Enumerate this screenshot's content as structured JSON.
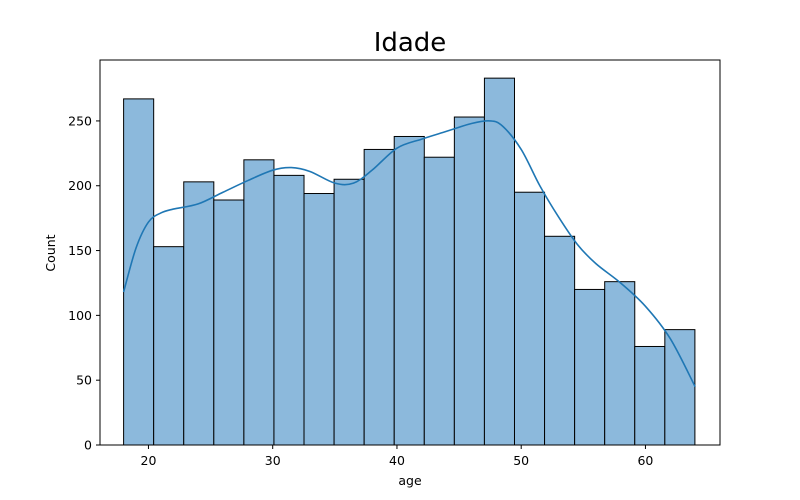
{
  "chart_data": {
    "type": "bar",
    "title": "Idade",
    "xlabel": "age",
    "ylabel": "Count",
    "xlim": [
      16.1,
      66.0
    ],
    "ylim": [
      0,
      297
    ],
    "x_ticks": [
      20,
      30,
      40,
      50,
      60
    ],
    "y_ticks": [
      0,
      50,
      100,
      150,
      200,
      250
    ],
    "bin_edges": [
      18.0,
      20.42,
      22.84,
      25.26,
      27.68,
      30.1,
      32.52,
      34.94,
      37.36,
      39.78,
      42.2,
      44.62,
      47.04,
      49.46,
      51.88,
      54.3,
      56.72,
      59.14,
      61.56,
      63.98
    ],
    "values": [
      267,
      153,
      203,
      189,
      220,
      208,
      194,
      205,
      228,
      238,
      222,
      253,
      283,
      195,
      161,
      120,
      126,
      76,
      89
    ],
    "kde": {
      "x": [
        18,
        19,
        20,
        21,
        22,
        24,
        26,
        28,
        30,
        31.5,
        33,
        35,
        36.5,
        38,
        40,
        42,
        44,
        46,
        47.5,
        48.5,
        50,
        51.5,
        53,
        54.5,
        56,
        58,
        60,
        62,
        64
      ],
      "y": [
        118,
        152,
        172,
        179,
        182,
        186,
        195,
        204,
        212,
        214,
        211,
        202,
        202,
        212,
        229,
        236,
        242,
        248,
        250,
        246,
        228,
        200,
        176,
        155,
        140,
        125,
        107,
        82,
        45
      ]
    },
    "bar_fill": "#8cb9dc",
    "bar_edge": "#000000",
    "kde_color": "#1f77b4",
    "grid": false,
    "legend": false
  }
}
